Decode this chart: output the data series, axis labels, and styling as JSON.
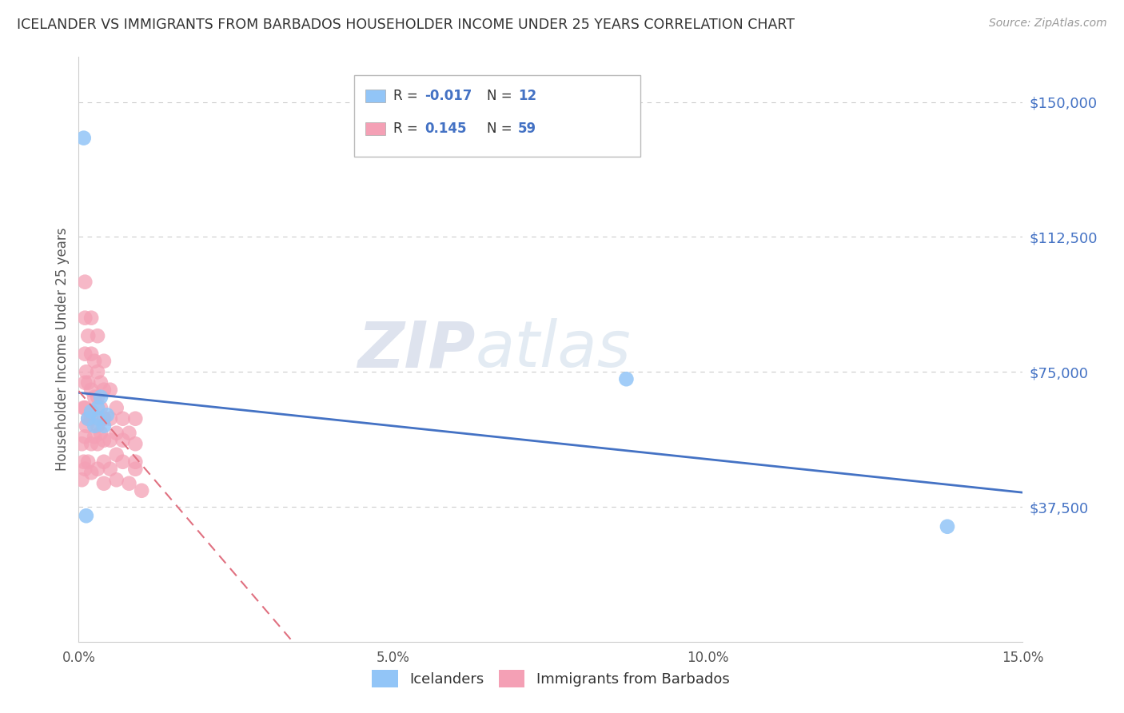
{
  "title": "ICELANDER VS IMMIGRANTS FROM BARBADOS HOUSEHOLDER INCOME UNDER 25 YEARS CORRELATION CHART",
  "source": "Source: ZipAtlas.com",
  "ylabel": "Householder Income Under 25 years",
  "xlim": [
    0.0,
    0.15
  ],
  "ylim": [
    0,
    162500
  ],
  "yticks": [
    37500,
    75000,
    112500,
    150000
  ],
  "ytick_labels": [
    "$37,500",
    "$75,000",
    "$112,500",
    "$150,000"
  ],
  "xticks": [
    0.0,
    0.05,
    0.1,
    0.15
  ],
  "xtick_labels": [
    "0.0%",
    "5.0%",
    "10.0%",
    "15.0%"
  ],
  "icelanders_color": "#92c5f7",
  "barbados_color": "#f4a0b5",
  "trend_iceland_color": "#4472c4",
  "trend_barbados_color": "#e07080",
  "R_iceland": -0.017,
  "N_iceland": 12,
  "R_barbados": 0.145,
  "N_barbados": 59,
  "background_color": "#ffffff",
  "grid_color": "#cccccc",
  "title_color": "#333333",
  "legend_R_color": "#4472c4",
  "iceland_x": [
    0.0008,
    0.0015,
    0.002,
    0.0025,
    0.003,
    0.0032,
    0.0035,
    0.004,
    0.0045,
    0.087,
    0.0012,
    0.138
  ],
  "iceland_y": [
    140000,
    62000,
    64000,
    60000,
    65000,
    62000,
    68000,
    60000,
    63000,
    73000,
    35000,
    32000
  ],
  "barbados_x": [
    0.0005,
    0.0005,
    0.0008,
    0.0008,
    0.001,
    0.001,
    0.001,
    0.001,
    0.001,
    0.001,
    0.001,
    0.0012,
    0.0012,
    0.0015,
    0.0015,
    0.0015,
    0.0015,
    0.002,
    0.002,
    0.002,
    0.002,
    0.002,
    0.002,
    0.0025,
    0.0025,
    0.0025,
    0.003,
    0.003,
    0.003,
    0.003,
    0.003,
    0.003,
    0.0035,
    0.0035,
    0.0035,
    0.004,
    0.004,
    0.004,
    0.004,
    0.004,
    0.004,
    0.005,
    0.005,
    0.005,
    0.005,
    0.006,
    0.006,
    0.006,
    0.006,
    0.007,
    0.007,
    0.007,
    0.008,
    0.008,
    0.009,
    0.009,
    0.009,
    0.009,
    0.01
  ],
  "barbados_y": [
    55000,
    45000,
    65000,
    50000,
    100000,
    90000,
    80000,
    72000,
    65000,
    57000,
    48000,
    75000,
    60000,
    85000,
    72000,
    62000,
    50000,
    90000,
    80000,
    70000,
    62000,
    55000,
    47000,
    78000,
    68000,
    57000,
    85000,
    75000,
    68000,
    60000,
    55000,
    48000,
    72000,
    65000,
    58000,
    78000,
    70000,
    62000,
    56000,
    50000,
    44000,
    70000,
    62000,
    56000,
    48000,
    65000,
    58000,
    52000,
    45000,
    62000,
    56000,
    50000,
    44000,
    58000,
    50000,
    62000,
    55000,
    48000,
    42000
  ]
}
